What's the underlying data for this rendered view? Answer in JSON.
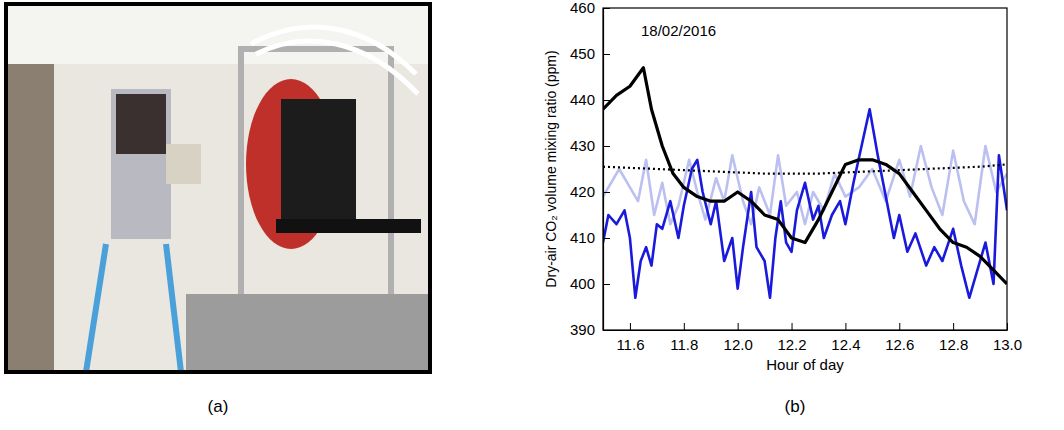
{
  "panel_labels": [
    "(a)",
    "(b)"
  ],
  "chart_data": {
    "type": "line",
    "annotation": "18/02/2016",
    "x_label": "Hour of day",
    "y_label": "Dry-air CO₂ volume mixing ratio (ppm)",
    "xlim": [
      11.5,
      13.0
    ],
    "xticks": [
      11.6,
      11.8,
      {
        "value": 12,
        "label": "12.0"
      },
      12.2,
      12.4,
      12.6,
      12.8,
      {
        "value": 13,
        "label": "13.0"
      }
    ],
    "ylim": [
      390,
      460
    ],
    "yticks": [
      390,
      400,
      410,
      420,
      430,
      440,
      450,
      460
    ],
    "series": [
      {
        "color": "#bcc0f0",
        "line_style": "solid",
        "x": [
          11.5,
          11.53,
          11.56,
          11.6,
          11.63,
          11.66,
          11.69,
          11.72,
          11.75,
          11.78,
          11.82,
          11.85,
          11.88,
          11.92,
          11.95,
          11.98,
          12.02,
          12.05,
          12.08,
          12.12,
          12.15,
          12.18,
          12.22,
          12.25,
          12.28,
          12.32,
          12.36,
          12.4,
          12.45,
          12.5,
          12.55,
          12.6,
          12.64,
          12.68,
          12.72,
          12.76,
          12.8,
          12.84,
          12.88,
          12.92,
          12.96,
          13.0
        ],
        "values": [
          419,
          422,
          425,
          421,
          418,
          427,
          415,
          422,
          413,
          417,
          427,
          420,
          414,
          423,
          418,
          428,
          418,
          413,
          421,
          415,
          428,
          417,
          420,
          413,
          420,
          416,
          424,
          419,
          421,
          425,
          418,
          427,
          419,
          430,
          421,
          415,
          429,
          418,
          413,
          430,
          420,
          424
        ]
      },
      {
        "color": "#1a1adc",
        "line_style": "solid",
        "x": [
          11.5,
          11.52,
          11.55,
          11.58,
          11.6,
          11.62,
          11.64,
          11.66,
          11.68,
          11.7,
          11.72,
          11.75,
          11.78,
          11.8,
          11.83,
          11.85,
          11.87,
          11.9,
          11.92,
          11.95,
          11.98,
          12.0,
          12.02,
          12.05,
          12.07,
          12.1,
          12.12,
          12.14,
          12.16,
          12.18,
          12.2,
          12.22,
          12.25,
          12.28,
          12.3,
          12.32,
          12.35,
          12.38,
          12.4,
          12.43,
          12.46,
          12.49,
          12.52,
          12.55,
          12.58,
          12.6,
          12.63,
          12.66,
          12.7,
          12.73,
          12.76,
          12.8,
          12.83,
          12.86,
          12.89,
          12.92,
          12.95,
          12.97,
          13.0
        ],
        "values": [
          409,
          415,
          413,
          416,
          410,
          397,
          405,
          408,
          404,
          413,
          412,
          418,
          410,
          417,
          425,
          427,
          420,
          413,
          418,
          405,
          410,
          399,
          408,
          420,
          408,
          405,
          397,
          410,
          418,
          409,
          407,
          416,
          422,
          414,
          417,
          410,
          415,
          418,
          413,
          422,
          430,
          438,
          428,
          419,
          410,
          415,
          407,
          411,
          404,
          408,
          405,
          412,
          404,
          397,
          403,
          409,
          400,
          428,
          416
        ]
      },
      {
        "color": "#000000",
        "line_style": "dotted",
        "x": [
          11.5,
          11.7,
          11.9,
          12.1,
          12.2,
          12.3,
          12.5,
          12.7,
          12.9,
          13.0
        ],
        "values": [
          425.5,
          425,
          424.5,
          424,
          424,
          424,
          424.5,
          425,
          425.5,
          426
        ]
      },
      {
        "color": "#000000",
        "line_style": "solid",
        "x": [
          11.5,
          11.55,
          11.6,
          11.65,
          11.68,
          11.72,
          11.76,
          11.8,
          11.85,
          11.9,
          11.95,
          12.0,
          12.05,
          12.1,
          12.15,
          12.2,
          12.25,
          12.3,
          12.35,
          12.4,
          12.45,
          12.5,
          12.55,
          12.6,
          12.65,
          12.7,
          12.75,
          12.8,
          12.85,
          12.9,
          12.95,
          13.0
        ],
        "values": [
          438,
          441,
          443,
          447,
          438,
          430,
          424,
          421,
          419,
          418,
          418,
          420,
          418,
          415,
          414,
          410,
          409,
          414,
          420,
          426,
          427,
          427,
          426,
          424,
          420,
          416,
          412,
          409,
          408,
          406,
          403,
          400
        ]
      }
    ]
  }
}
